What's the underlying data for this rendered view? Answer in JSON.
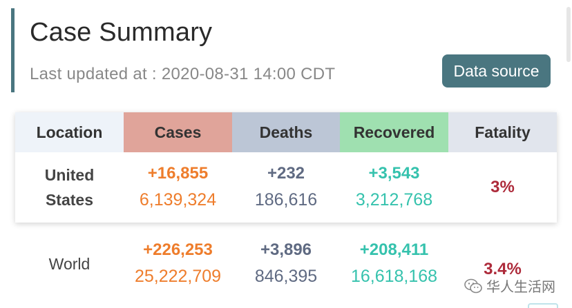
{
  "header": {
    "title": "Case Summary",
    "last_updated": "Last updated at : 2020-08-31 14:00 CDT",
    "source_button": "Data source",
    "accent_color": "#4a7680"
  },
  "table": {
    "columns": [
      "Location",
      "Cases",
      "Deaths",
      "Recovered",
      "Fatality"
    ],
    "column_colors": [
      "#eef3f9",
      "#e0a49a",
      "#bcc6d6",
      "#9fe0b0",
      "#e1e5ed"
    ],
    "rows": [
      {
        "location_line1": "United",
        "location_line2": "States",
        "cases_new": "+16,855",
        "cases_total": "6,139,324",
        "deaths_new": "+232",
        "deaths_total": "186,616",
        "recovered_new": "+3,543",
        "recovered_total": "3,212,768",
        "fatality": "3%"
      },
      {
        "location": "World",
        "cases_new": "+226,253",
        "cases_total": "25,222,709",
        "deaths_new": "+3,896",
        "deaths_total": "846,395",
        "recovered_new": "+208,411",
        "recovered_total": "16,618,168",
        "fatality": "3.4%"
      }
    ]
  },
  "watermark": {
    "icon": "wechat-icon",
    "text": "华人生活网"
  }
}
